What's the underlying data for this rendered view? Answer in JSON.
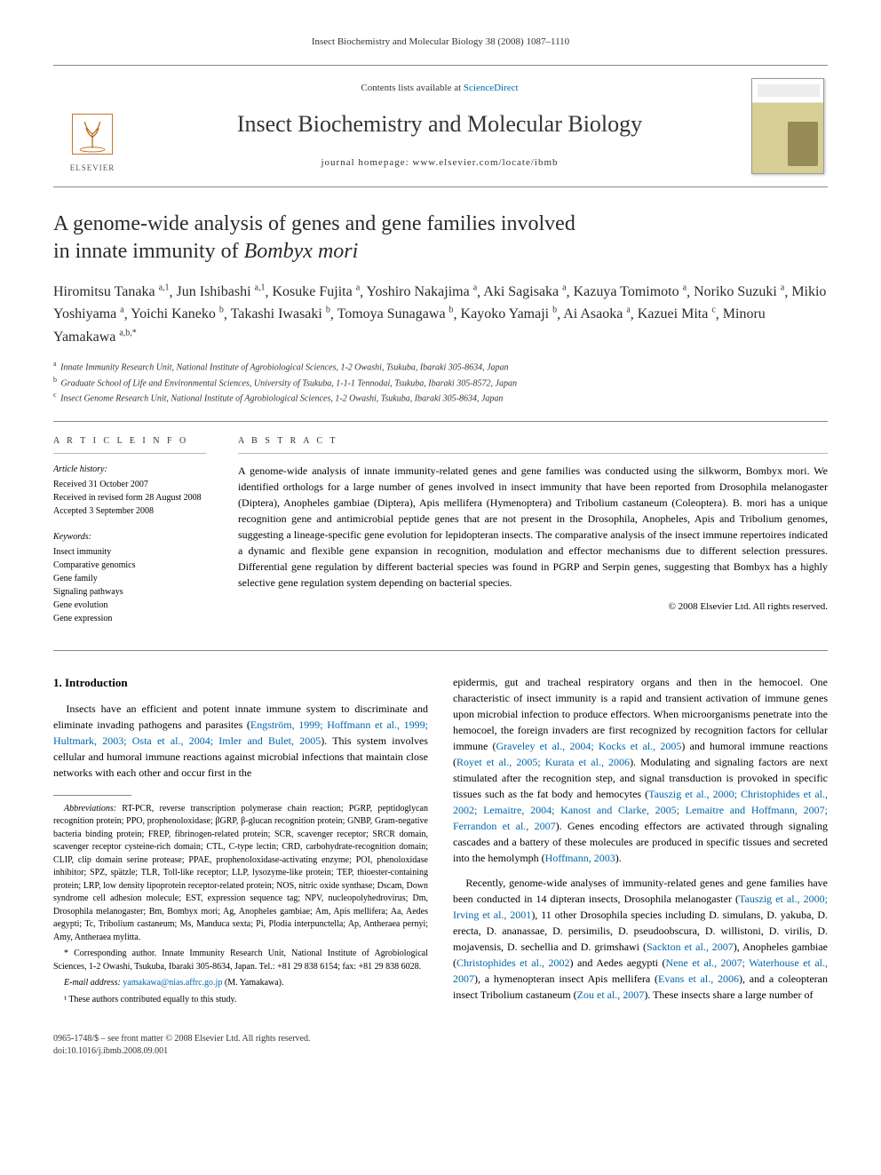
{
  "running_header": "Insect Biochemistry and Molecular Biology 38 (2008) 1087–1110",
  "masthead": {
    "contents_prefix": "Contents lists available at ",
    "contents_link": "ScienceDirect",
    "journal_name": "Insect Biochemistry and Molecular Biology",
    "homepage_line": "journal homepage: www.elsevier.com/locate/ibmb",
    "publisher_label": "ELSEVIER"
  },
  "title_line1": "A genome-wide analysis of genes and gene families involved",
  "title_line2_prefix": "in innate immunity of ",
  "title_line2_species": "Bombyx mori",
  "authors_html": "Hiromitsu Tanaka|a,1|, Jun Ishibashi|a,1|, Kosuke Fujita|a|, Yoshiro Nakajima|a|, Aki Sagisaka|a|, Kazuya Tomimoto|a|, Noriko Suzuki|a|, Mikio Yoshiyama|a|, Yoichi Kaneko|b|, Takashi Iwasaki|b|, Tomoya Sunagawa|b|, Kayoko Yamaji|b|, Ai Asaoka|a|, Kazuei Mita|c|, Minoru Yamakawa|a,b,*|",
  "affiliations": [
    {
      "sup": "a",
      "text": "Innate Immunity Research Unit, National Institute of Agrobiological Sciences, 1-2 Owashi, Tsukuba, Ibaraki 305-8634, Japan"
    },
    {
      "sup": "b",
      "text": "Graduate School of Life and Environmental Sciences, University of Tsukuba, 1-1-1 Tennodai, Tsukuba, Ibaraki 305-8572, Japan"
    },
    {
      "sup": "c",
      "text": "Insect Genome Research Unit, National Institute of Agrobiological Sciences, 1-2 Owashi, Tsukuba, Ibaraki 305-8634, Japan"
    }
  ],
  "article_info": {
    "head": "A R T I C L E   I N F O",
    "history_label": "Article history:",
    "history": [
      "Received 31 October 2007",
      "Received in revised form 28 August 2008",
      "Accepted 3 September 2008"
    ],
    "keywords_label": "Keywords:",
    "keywords": [
      "Insect immunity",
      "Comparative genomics",
      "Gene family",
      "Signaling pathways",
      "Gene evolution",
      "Gene expression"
    ]
  },
  "abstract": {
    "head": "A B S T R A C T",
    "body": "A genome-wide analysis of innate immunity-related genes and gene families was conducted using the silkworm, Bombyx mori. We identified orthologs for a large number of genes involved in insect immunity that have been reported from Drosophila melanogaster (Diptera), Anopheles gambiae (Diptera), Apis mellifera (Hymenoptera) and Tribolium castaneum (Coleoptera). B. mori has a unique recognition gene and antimicrobial peptide genes that are not present in the Drosophila, Anopheles, Apis and Tribolium genomes, suggesting a lineage-specific gene evolution for lepidopteran insects. The comparative analysis of the insect immune repertoires indicated a dynamic and flexible gene expansion in recognition, modulation and effector mechanisms due to different selection pressures. Differential gene regulation by different bacterial species was found in PGRP and Serpin genes, suggesting that Bombyx has a highly selective gene regulation system depending on bacterial species.",
    "copyright": "© 2008 Elsevier Ltd. All rights reserved."
  },
  "section1_head": "1. Introduction",
  "body": {
    "p1_a": "Insects have an efficient and potent innate immune system to discriminate and eliminate invading pathogens and parasites (",
    "p1_refs": "Engström, 1999; Hoffmann et al., 1999; Hultmark, 2003; Osta et al., 2004; Imler and Bulet, 2005",
    "p1_b": "). This system involves cellular and humoral immune reactions against microbial infections that maintain close networks with each other and occur first in the",
    "p2_a": "epidermis, gut and tracheal respiratory organs and then in the hemocoel. One characteristic of insect immunity is a rapid and transient activation of immune genes upon microbial infection to produce effectors. When microorganisms penetrate into the hemocoel, the foreign invaders are first recognized by recognition factors for cellular immune (",
    "p2_ref1": "Graveley et al., 2004; Kocks et al., 2005",
    "p2_b": ") and humoral immune reactions (",
    "p2_ref2": "Royet et al., 2005; Kurata et al., 2006",
    "p2_c": "). Modulating and signaling factors are next stimulated after the recognition step, and signal transduction is provoked in specific tissues such as the fat body and hemocytes (",
    "p2_ref3": "Tauszig et al., 2000; Christophides et al., 2002; Lemaitre, 2004; Kanost and Clarke, 2005; Lemaitre and Hoffmann, 2007; Ferrandon et al., 2007",
    "p2_d": "). Genes encoding effectors are activated through signaling cascades and a battery of these molecules are produced in specific tissues and secreted into the hemolymph (",
    "p2_ref4": "Hoffmann, 2003",
    "p2_e": ").",
    "p3_a": "Recently, genome-wide analyses of immunity-related genes and gene families have been conducted in 14 dipteran insects, Drosophila melanogaster (",
    "p3_ref1": "Tauszig et al., 2000; Irving et al., 2001",
    "p3_b": "), 11 other Drosophila species including D. simulans, D. yakuba, D. erecta, D. ananassae, D. persimilis, D. pseudoobscura, D. willistoni, D. virilis, D. mojavensis, D. sechellia and D. grimshawi (",
    "p3_ref2": "Sackton et al., 2007",
    "p3_c": "), Anopheles gambiae (",
    "p3_ref3": "Christophides et al., 2002",
    "p3_d": ") and Aedes aegypti (",
    "p3_ref4": "Nene et al., 2007; Waterhouse et al., 2007",
    "p3_e": "), a hymenopteran insect Apis mellifera (",
    "p3_ref5": "Evans et al., 2006",
    "p3_f": "), and a coleopteran insect Tribolium castaneum (",
    "p3_ref6": "Zou et al., 2007",
    "p3_g": "). These insects share a large number of"
  },
  "footnotes": {
    "abbrev_label": "Abbreviations:",
    "abbrev": "RT-PCR, reverse transcription polymerase chain reaction; PGRP, peptidoglycan recognition protein; PPO, prophenoloxidase; βGRP, β-glucan recognition protein; GNBP, Gram-negative bacteria binding protein; FREP, fibrinogen-related protein; SCR, scavenger receptor; SRCR domain, scavenger receptor cysteine-rich domain; CTL, C-type lectin; CRD, carbohydrate-recognition domain; CLIP, clip domain serine protease; PPAE, prophenoloxidase-activating enzyme; POI, phenoloxidase inhibitor; SPZ, spätzle; TLR, Toll-like receptor; LLP, lysozyme-like protein; TEP, thioester-containing protein; LRP, low density lipoprotein receptor-related protein; NOS, nitric oxide synthase; Dscam, Down syndrome cell adhesion molecule; EST, expression sequence tag; NPV, nucleopolyhedrovirus; Dm, Drosophila melanogaster; Bm, Bombyx mori; Ag, Anopheles gambiae; Am, Apis mellifera; Aa, Aedes aegypti; Tc, Tribolium castaneum; Ms, Manduca sexta; Pi, Plodia interpunctella; Ap, Antheraea pernyi; Amy, Antheraea mylitta.",
    "corr": "* Corresponding author. Innate Immunity Research Unit, National Institute of Agrobiological Sciences, 1-2 Owashi, Tsukuba, Ibaraki 305-8634, Japan. Tel.: +81 29 838 6154; fax: +81 29 838 6028.",
    "email_label": "E-mail address:",
    "email": "yamakawa@nias.affrc.go.jp",
    "email_suffix": " (M. Yamakawa).",
    "equal": "¹ These authors contributed equally to this study."
  },
  "footer": {
    "left1": "0965-1748/$ – see front matter © 2008 Elsevier Ltd. All rights reserved.",
    "left2": "doi:10.1016/j.ibmb.2008.09.001"
  },
  "colors": {
    "link": "#0066aa",
    "text": "#000000",
    "rule": "#888888",
    "muted": "#333333"
  },
  "typography": {
    "body_pt": 12,
    "title_pt": 24,
    "journal_pt": 26,
    "authors_pt": 16,
    "small_pt": 10
  }
}
